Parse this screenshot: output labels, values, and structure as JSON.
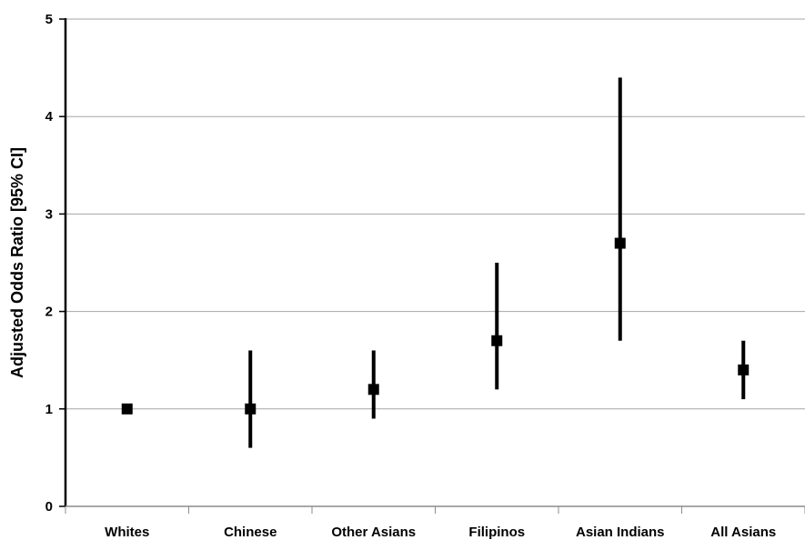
{
  "chart_data": {
    "type": "scatter",
    "subtype": "point estimate with 95% confidence interval error bars",
    "title": "",
    "xlabel": "",
    "ylabel": "Adjusted Odds Ratio [95% CI]",
    "ylim": [
      0,
      5
    ],
    "yticks": [
      "0",
      "1",
      "2",
      "3",
      "4",
      "5"
    ],
    "grid": "horizontal",
    "categories": [
      "Whites",
      "Chinese",
      "Other Asians",
      "Filipinos",
      "Asian Indians",
      "All Asians"
    ],
    "series": [
      {
        "values": [
          1.0,
          1.0,
          1.2,
          1.7,
          2.7,
          1.4
        ],
        "ci_lower": [
          1.0,
          0.6,
          0.9,
          1.2,
          1.7,
          1.1
        ],
        "ci_upper": [
          1.0,
          1.6,
          1.6,
          2.5,
          4.4,
          1.7
        ]
      }
    ]
  }
}
